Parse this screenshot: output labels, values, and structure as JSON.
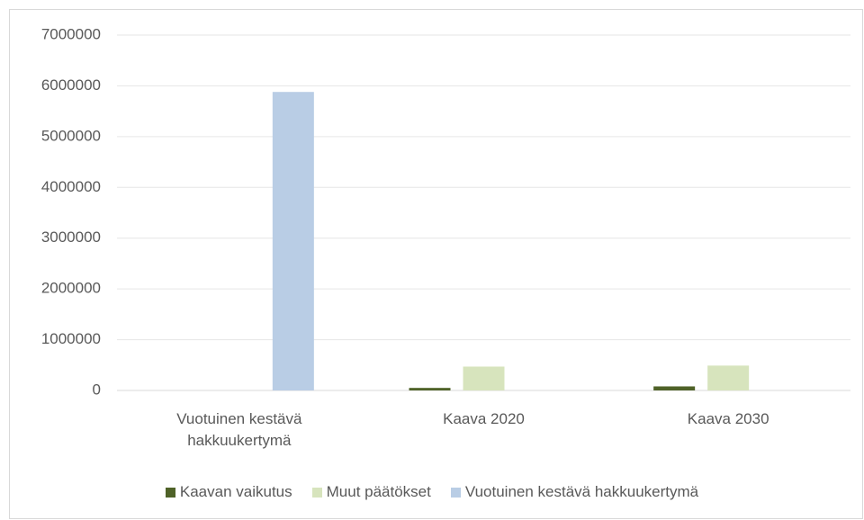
{
  "chart_data": {
    "type": "bar",
    "categories": [
      "Vuotuinen kestävä hakkuukertymä",
      "Kaava 2020",
      "Kaava 2030"
    ],
    "series": [
      {
        "name": "Kaavan vaikutus",
        "color": "#4f6228",
        "values": [
          null,
          50000,
          80000
        ]
      },
      {
        "name": "Muut päätökset",
        "color": "#d7e4bd",
        "values": [
          null,
          470000,
          490000
        ]
      },
      {
        "name": "Vuotuinen kestävä hakkuukertymä",
        "color": "#b9cde5",
        "values": [
          5880000,
          null,
          null
        ]
      }
    ],
    "ylim": [
      0,
      7000000
    ],
    "yticks": [
      0,
      1000000,
      2000000,
      3000000,
      4000000,
      5000000,
      6000000,
      7000000
    ],
    "grid": true,
    "legend": "bottom"
  }
}
